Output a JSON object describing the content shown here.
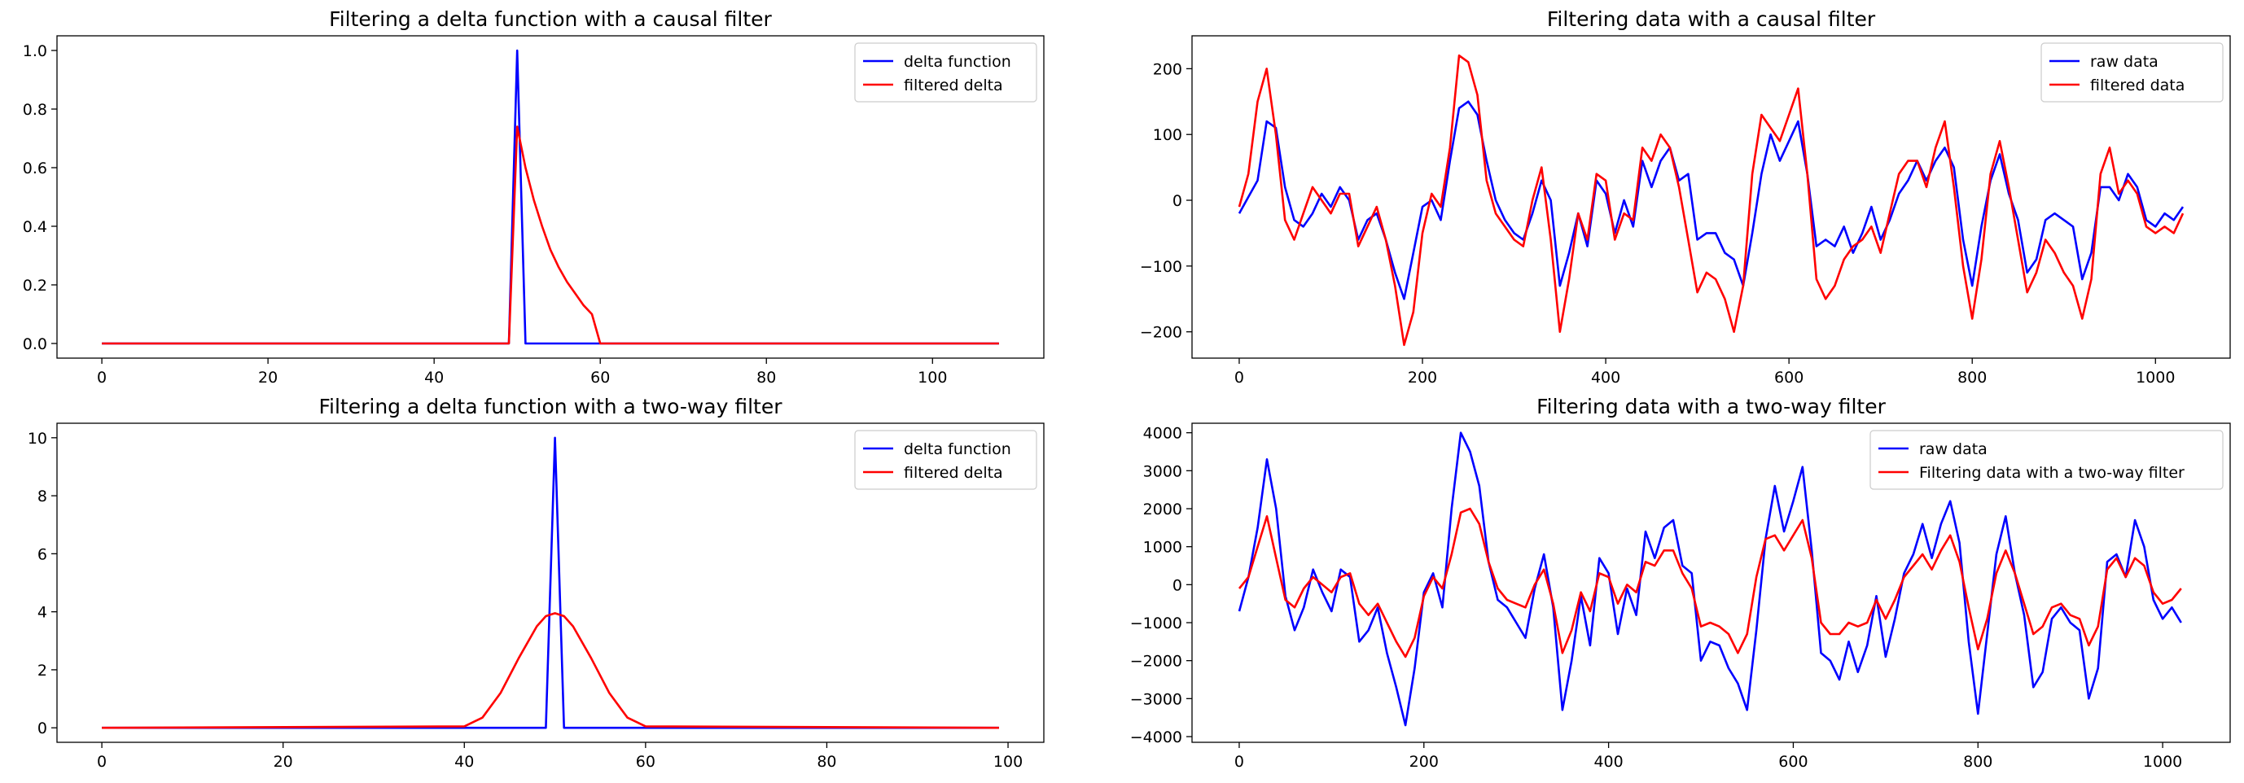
{
  "chart_data": [
    {
      "type": "line",
      "title": "Filtering a delta function with a causal filter",
      "xlabel": "",
      "ylabel": "",
      "xlim": [
        -5.4,
        113.4
      ],
      "ylim": [
        -0.05,
        1.05
      ],
      "xticks": [
        0,
        20,
        40,
        60,
        80,
        100
      ],
      "xtick_labels": [
        "0",
        "20",
        "40",
        "60",
        "80",
        "100"
      ],
      "yticks": [
        0.0,
        0.2,
        0.4,
        0.6,
        0.8,
        1.0
      ],
      "ytick_labels": [
        "0.0",
        "0.2",
        "0.4",
        "0.6",
        "0.8",
        "1.0"
      ],
      "grid": false,
      "legend": "top-right",
      "series": [
        {
          "name": "delta function",
          "color": "#0000ff",
          "x": [
            0,
            49,
            50,
            51,
            108
          ],
          "y": [
            0,
            0,
            1,
            0,
            0
          ]
        },
        {
          "name": "filtered delta",
          "color": "#ff0000",
          "x": [
            0,
            49,
            50,
            51,
            52,
            53,
            54,
            55,
            56,
            57,
            58,
            59,
            60,
            108
          ],
          "y": [
            0,
            0,
            0.74,
            0.6,
            0.49,
            0.4,
            0.32,
            0.26,
            0.21,
            0.17,
            0.13,
            0.1,
            0,
            0
          ]
        }
      ]
    },
    {
      "type": "line",
      "title": "Filtering data with a causal filter",
      "xlabel": "",
      "ylabel": "",
      "xlim": [
        -51.5,
        1081.5
      ],
      "ylim": [
        -240,
        250
      ],
      "xticks": [
        0,
        200,
        400,
        600,
        800,
        1000
      ],
      "xtick_labels": [
        "0",
        "200",
        "400",
        "600",
        "800",
        "1000"
      ],
      "yticks": [
        -200,
        -100,
        0,
        100,
        200
      ],
      "ytick_labels": [
        "−200",
        "−100",
        "0",
        "100",
        "200"
      ],
      "grid": false,
      "legend": "top-right",
      "series": [
        {
          "name": "raw data",
          "color": "#0000ff",
          "x": [
            0,
            10,
            20,
            30,
            40,
            50,
            60,
            70,
            80,
            90,
            100,
            110,
            120,
            130,
            140,
            150,
            160,
            170,
            180,
            190,
            200,
            210,
            220,
            230,
            240,
            250,
            260,
            270,
            280,
            290,
            300,
            310,
            320,
            330,
            340,
            350,
            360,
            370,
            380,
            390,
            400,
            410,
            420,
            430,
            440,
            450,
            460,
            470,
            480,
            490,
            500,
            510,
            520,
            530,
            540,
            550,
            560,
            570,
            580,
            590,
            600,
            610,
            620,
            630,
            640,
            650,
            660,
            670,
            680,
            690,
            700,
            710,
            720,
            730,
            740,
            750,
            760,
            770,
            780,
            790,
            800,
            810,
            820,
            830,
            840,
            850,
            860,
            870,
            880,
            890,
            900,
            910,
            920,
            930,
            940,
            950,
            960,
            970,
            980,
            990,
            1000,
            1010,
            1020,
            1030
          ],
          "y": [
            -20,
            5,
            30,
            120,
            110,
            20,
            -30,
            -40,
            -20,
            10,
            -10,
            20,
            0,
            -60,
            -30,
            -20,
            -60,
            -110,
            -150,
            -80,
            -10,
            0,
            -30,
            60,
            140,
            150,
            130,
            60,
            0,
            -30,
            -50,
            -60,
            -20,
            30,
            0,
            -130,
            -80,
            -20,
            -70,
            30,
            10,
            -50,
            0,
            -40,
            60,
            20,
            60,
            80,
            30,
            40,
            -60,
            -50,
            -50,
            -80,
            -90,
            -130,
            -50,
            40,
            100,
            60,
            90,
            120,
            40,
            -70,
            -60,
            -70,
            -40,
            -80,
            -50,
            -10,
            -60,
            -30,
            10,
            30,
            60,
            30,
            60,
            80,
            50,
            -60,
            -130,
            -40,
            30,
            70,
            10,
            -30,
            -110,
            -90,
            -30,
            -20,
            -30,
            -40,
            -120,
            -80,
            20,
            20,
            0,
            40,
            20,
            -30,
            -40,
            -20,
            -30,
            -10
          ]
        },
        {
          "name": "filtered data",
          "color": "#ff0000",
          "x": [
            0,
            10,
            20,
            30,
            40,
            50,
            60,
            70,
            80,
            90,
            100,
            110,
            120,
            130,
            140,
            150,
            160,
            170,
            180,
            190,
            200,
            210,
            220,
            230,
            240,
            250,
            260,
            270,
            280,
            290,
            300,
            310,
            320,
            330,
            340,
            350,
            360,
            370,
            380,
            390,
            400,
            410,
            420,
            430,
            440,
            450,
            460,
            470,
            480,
            490,
            500,
            510,
            520,
            530,
            540,
            550,
            560,
            570,
            580,
            590,
            600,
            610,
            620,
            630,
            640,
            650,
            660,
            670,
            680,
            690,
            700,
            710,
            720,
            730,
            740,
            750,
            760,
            770,
            780,
            790,
            800,
            810,
            820,
            830,
            840,
            850,
            860,
            870,
            880,
            890,
            900,
            910,
            920,
            930,
            940,
            950,
            960,
            970,
            980,
            990,
            1000,
            1010,
            1020,
            1030
          ],
          "y": [
            -10,
            40,
            150,
            200,
            100,
            -30,
            -60,
            -20,
            20,
            0,
            -20,
            10,
            10,
            -70,
            -40,
            -10,
            -60,
            -130,
            -220,
            -170,
            -50,
            10,
            -10,
            80,
            220,
            210,
            160,
            30,
            -20,
            -40,
            -60,
            -70,
            0,
            50,
            -60,
            -200,
            -120,
            -20,
            -60,
            40,
            30,
            -60,
            -20,
            -30,
            80,
            60,
            100,
            80,
            20,
            -60,
            -140,
            -110,
            -120,
            -150,
            -200,
            -130,
            40,
            130,
            110,
            90,
            130,
            170,
            40,
            -120,
            -150,
            -130,
            -90,
            -70,
            -60,
            -40,
            -80,
            -20,
            40,
            60,
            60,
            20,
            80,
            120,
            20,
            -100,
            -180,
            -90,
            40,
            90,
            20,
            -60,
            -140,
            -110,
            -60,
            -80,
            -110,
            -130,
            -180,
            -120,
            40,
            80,
            10,
            30,
            10,
            -40,
            -50,
            -40,
            -50,
            -20
          ]
        }
      ]
    },
    {
      "type": "line",
      "title": "Filtering a delta function with a two-way filter",
      "xlabel": "",
      "ylabel": "",
      "xlim": [
        -4.95,
        103.95
      ],
      "ylim": [
        -0.5,
        10.5
      ],
      "xticks": [
        0,
        20,
        40,
        60,
        80,
        100
      ],
      "xtick_labels": [
        "0",
        "20",
        "40",
        "60",
        "80",
        "100"
      ],
      "yticks": [
        0,
        2,
        4,
        6,
        8,
        10
      ],
      "ytick_labels": [
        "0",
        "2",
        "4",
        "6",
        "8",
        "10"
      ],
      "grid": false,
      "legend": "top-right",
      "series": [
        {
          "name": "delta function",
          "color": "#0000ff",
          "x": [
            0,
            49,
            50,
            51,
            99
          ],
          "y": [
            0,
            0,
            10,
            0,
            0
          ]
        },
        {
          "name": "filtered delta",
          "color": "#ff0000",
          "x": [
            0,
            40,
            42,
            44,
            46,
            48,
            49,
            50,
            51,
            52,
            54,
            56,
            58,
            60,
            99
          ],
          "y": [
            0,
            0.05,
            0.35,
            1.2,
            2.4,
            3.5,
            3.85,
            3.95,
            3.85,
            3.5,
            2.4,
            1.2,
            0.35,
            0.05,
            0
          ]
        }
      ]
    },
    {
      "type": "line",
      "title": "Filtering data with a two-way filter",
      "xlabel": "",
      "ylabel": "",
      "xlim": [
        -51.1,
        1073.1
      ],
      "ylim": [
        -4150,
        4250
      ],
      "xticks": [
        0,
        200,
        400,
        600,
        800,
        1000
      ],
      "xtick_labels": [
        "0",
        "200",
        "400",
        "600",
        "800",
        "1000"
      ],
      "yticks": [
        -4000,
        -3000,
        -2000,
        -1000,
        0,
        1000,
        2000,
        3000,
        4000
      ],
      "ytick_labels": [
        "−4000",
        "−3000",
        "−2000",
        "−1000",
        "0",
        "1000",
        "2000",
        "3000",
        "4000"
      ],
      "grid": false,
      "legend": "top-right",
      "series": [
        {
          "name": "raw data",
          "color": "#0000ff",
          "x": [
            0,
            10,
            20,
            30,
            40,
            50,
            60,
            70,
            80,
            90,
            100,
            110,
            120,
            130,
            140,
            150,
            160,
            170,
            180,
            190,
            200,
            210,
            220,
            230,
            240,
            250,
            260,
            270,
            280,
            290,
            300,
            310,
            320,
            330,
            340,
            350,
            360,
            370,
            380,
            390,
            400,
            410,
            420,
            430,
            440,
            450,
            460,
            470,
            480,
            490,
            500,
            510,
            520,
            530,
            540,
            550,
            560,
            570,
            580,
            590,
            600,
            610,
            620,
            630,
            640,
            650,
            660,
            670,
            680,
            690,
            700,
            710,
            720,
            730,
            740,
            750,
            760,
            770,
            780,
            790,
            800,
            810,
            820,
            830,
            840,
            850,
            860,
            870,
            880,
            890,
            900,
            910,
            920,
            930,
            940,
            950,
            960,
            970,
            980,
            990,
            1000,
            1010,
            1020
          ],
          "y": [
            -700,
            200,
            1500,
            3300,
            2000,
            -300,
            -1200,
            -600,
            400,
            -200,
            -700,
            400,
            200,
            -1500,
            -1200,
            -600,
            -1800,
            -2700,
            -3700,
            -2200,
            -200,
            300,
            -600,
            2000,
            4000,
            3500,
            2600,
            600,
            -400,
            -600,
            -1000,
            -1400,
            -100,
            800,
            -600,
            -3300,
            -2000,
            -300,
            -1600,
            700,
            300,
            -1300,
            -100,
            -800,
            1400,
            700,
            1500,
            1700,
            500,
            300,
            -2000,
            -1500,
            -1600,
            -2200,
            -2600,
            -3300,
            -1200,
            1200,
            2600,
            1400,
            2200,
            3100,
            900,
            -1800,
            -2000,
            -2500,
            -1500,
            -2300,
            -1600,
            -300,
            -1900,
            -900,
            300,
            800,
            1600,
            700,
            1600,
            2200,
            1100,
            -1500,
            -3400,
            -1300,
            800,
            1800,
            300,
            -800,
            -2700,
            -2300,
            -900,
            -600,
            -1000,
            -1200,
            -3000,
            -2200,
            600,
            800,
            200,
            1700,
            1000,
            -400,
            -900,
            -600,
            -1000
          ]
        },
        {
          "name": "Filtering data with a two-way filter",
          "color": "#ff0000",
          "x": [
            0,
            10,
            20,
            30,
            40,
            50,
            60,
            70,
            80,
            90,
            100,
            110,
            120,
            130,
            140,
            150,
            160,
            170,
            180,
            190,
            200,
            210,
            220,
            230,
            240,
            250,
            260,
            270,
            280,
            290,
            300,
            310,
            320,
            330,
            340,
            350,
            360,
            370,
            380,
            390,
            400,
            410,
            420,
            430,
            440,
            450,
            460,
            470,
            480,
            490,
            500,
            510,
            520,
            530,
            540,
            550,
            560,
            570,
            580,
            590,
            600,
            610,
            620,
            630,
            640,
            650,
            660,
            670,
            680,
            690,
            700,
            710,
            720,
            730,
            740,
            750,
            760,
            770,
            780,
            790,
            800,
            810,
            820,
            830,
            840,
            850,
            860,
            870,
            880,
            890,
            900,
            910,
            920,
            930,
            940,
            950,
            960,
            970,
            980,
            990,
            1000,
            1010,
            1020
          ],
          "y": [
            -100,
            200,
            1000,
            1800,
            700,
            -400,
            -600,
            -100,
            200,
            0,
            -200,
            200,
            300,
            -500,
            -800,
            -500,
            -1000,
            -1500,
            -1900,
            -1400,
            -300,
            200,
            -100,
            800,
            1900,
            2000,
            1600,
            600,
            -100,
            -400,
            -500,
            -600,
            0,
            400,
            -500,
            -1800,
            -1200,
            -200,
            -700,
            300,
            200,
            -500,
            0,
            -200,
            600,
            500,
            900,
            900,
            300,
            -100,
            -1100,
            -1000,
            -1100,
            -1300,
            -1800,
            -1300,
            200,
            1200,
            1300,
            900,
            1300,
            1700,
            700,
            -1000,
            -1300,
            -1300,
            -1000,
            -1100,
            -1000,
            -400,
            -900,
            -400,
            200,
            500,
            800,
            400,
            900,
            1300,
            600,
            -600,
            -1700,
            -900,
            300,
            900,
            300,
            -500,
            -1300,
            -1100,
            -600,
            -500,
            -800,
            -900,
            -1600,
            -1100,
            400,
            700,
            200,
            700,
            500,
            -200,
            -500,
            -400,
            -100
          ]
        }
      ]
    }
  ]
}
